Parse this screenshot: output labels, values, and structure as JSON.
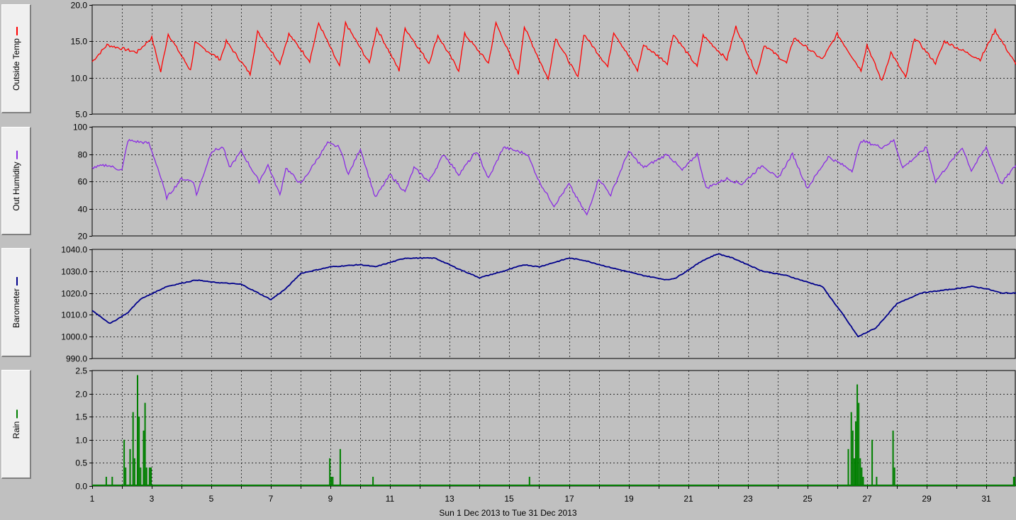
{
  "footer": {
    "date_range": "Sun 1 Dec 2013  to  Tue 31 Dec 2013"
  },
  "x_axis": {
    "ticks": [
      "1",
      "3",
      "5",
      "7",
      "9",
      "11",
      "13",
      "15",
      "17",
      "19",
      "21",
      "23",
      "25",
      "27",
      "29",
      "31"
    ]
  },
  "chart_data": [
    {
      "type": "line",
      "label": "Outside Temp",
      "color": "#ff0000",
      "ylim": [
        5,
        20
      ],
      "yticks": [
        "5.0",
        "10.0",
        "15.0",
        "20.0"
      ],
      "series": [
        {
          "name": "Outside Temp",
          "values": [
            12.2,
            14.5,
            13.5,
            15.5,
            10.8,
            16.0,
            11.0,
            14.8,
            12.5,
            15.0,
            10.5,
            16.3,
            12.0,
            16.0,
            12.3,
            17.5,
            11.5,
            17.5,
            12.0,
            16.8,
            11.0,
            16.8,
            12.0,
            15.8,
            11.0,
            16.0,
            12.0,
            17.5,
            10.5,
            17.0,
            9.8,
            15.5,
            10.0,
            16.0,
            11.5,
            16.3,
            11.0,
            14.5,
            12.0,
            16.0,
            11.5,
            15.8,
            12.5,
            17.0,
            10.5,
            14.5,
            12.0,
            15.5,
            12.5,
            16.0,
            11.0,
            14.5,
            9.5,
            13.5,
            10.0,
            15.5,
            12.0,
            15.0,
            12.5,
            16.5,
            11.8
          ]
        }
      ],
      "x": [
        1.0,
        1.5,
        2.5,
        3.0,
        3.3,
        3.55,
        4.3,
        4.45,
        5.3,
        5.5,
        6.3,
        6.55,
        7.3,
        7.6,
        8.3,
        8.6,
        9.3,
        9.5,
        10.3,
        10.55,
        11.3,
        11.5,
        12.3,
        12.6,
        13.3,
        13.5,
        14.3,
        14.55,
        15.3,
        15.5,
        16.3,
        16.55,
        17.3,
        17.5,
        18.3,
        18.5,
        19.3,
        19.5,
        20.3,
        20.5,
        21.3,
        21.5,
        22.3,
        22.6,
        23.3,
        23.55,
        24.3,
        24.55,
        25.5,
        26.0,
        26.8,
        27.0,
        27.5,
        27.8,
        28.3,
        28.6,
        29.3,
        29.6,
        30.8,
        31.3,
        32.0
      ]
    },
    {
      "type": "line",
      "label": "Out Humidity",
      "color": "#8a2be2",
      "ylim": [
        20,
        100
      ],
      "yticks": [
        "20",
        "40",
        "60",
        "80",
        "100"
      ],
      "series": [
        {
          "name": "Out Humidity",
          "values": [
            70,
            72,
            68,
            90,
            88,
            70,
            48,
            62,
            60,
            50,
            82,
            85,
            70,
            82,
            60,
            72,
            50,
            70,
            58,
            88,
            85,
            65,
            84,
            48,
            65,
            52,
            70,
            60,
            80,
            65,
            82,
            62,
            85,
            80,
            60,
            42,
            58,
            35,
            62,
            50,
            82,
            70,
            80,
            68,
            80,
            55,
            62,
            58,
            72,
            62,
            80,
            55,
            78,
            68,
            90,
            85,
            90,
            70,
            85,
            60,
            85,
            68,
            85,
            58,
            72
          ]
        }
      ],
      "x": [
        1.0,
        1.5,
        2.0,
        2.2,
        2.9,
        3.2,
        3.5,
        4.0,
        4.4,
        4.5,
        5.0,
        5.4,
        5.6,
        6.0,
        6.6,
        6.9,
        7.3,
        7.5,
        8.0,
        8.9,
        9.3,
        9.6,
        10.0,
        10.5,
        11.0,
        11.5,
        11.8,
        12.3,
        12.8,
        13.3,
        13.9,
        14.3,
        14.8,
        15.6,
        16.0,
        16.5,
        17.0,
        17.6,
        18.0,
        18.4,
        19.0,
        19.5,
        20.3,
        20.8,
        21.3,
        21.6,
        22.3,
        22.8,
        23.5,
        24.0,
        24.5,
        25.0,
        25.7,
        26.5,
        26.8,
        27.5,
        27.9,
        28.2,
        29.0,
        29.3,
        30.2,
        30.5,
        31.0,
        31.5,
        32.0
      ]
    },
    {
      "type": "line",
      "label": "Barometer",
      "color": "#00008b",
      "ylim": [
        990,
        1040
      ],
      "yticks": [
        "990.0",
        "1000.0",
        "1010.0",
        "1020.0",
        "1030.0",
        "1040.0"
      ],
      "series": [
        {
          "name": "Barometer",
          "values": [
            1012,
            1006,
            1011,
            1017,
            1023,
            1026,
            1025,
            1024,
            1017,
            1022,
            1029,
            1032,
            1033,
            1032,
            1036,
            1036,
            1031,
            1027,
            1030,
            1033,
            1032,
            1036,
            1035,
            1032,
            1028,
            1026,
            1027,
            1035,
            1038,
            1036,
            1030,
            1028,
            1025,
            1023,
            1010,
            1000,
            1004,
            1015,
            1020,
            1022,
            1023,
            1022,
            1020,
            1020
          ]
        }
      ],
      "x": [
        1.0,
        1.6,
        2.2,
        2.6,
        3.5,
        4.5,
        5.0,
        6.0,
        7.0,
        7.5,
        8.0,
        9.0,
        10.0,
        10.5,
        11.5,
        12.5,
        13.3,
        14.0,
        14.8,
        15.5,
        16.0,
        17.0,
        17.5,
        18.3,
        19.5,
        20.3,
        20.6,
        21.5,
        22.0,
        22.5,
        23.5,
        24.3,
        25.0,
        25.5,
        26.2,
        26.7,
        27.3,
        28.0,
        28.8,
        30.0,
        30.5,
        31.0,
        31.5,
        32.0
      ]
    },
    {
      "type": "bar",
      "label": "Rain",
      "color": "#007f00",
      "ylim": [
        0,
        2.5
      ],
      "yticks": [
        "0.0",
        "0.5",
        "1.0",
        "1.5",
        "2.0",
        "2.5"
      ],
      "x": [
        1.45,
        1.65,
        2.05,
        2.1,
        2.25,
        2.35,
        2.4,
        2.5,
        2.55,
        2.6,
        2.7,
        2.75,
        2.8,
        2.9,
        2.95,
        8.95,
        9.0,
        9.05,
        9.3,
        10.4,
        15.65,
        26.35,
        26.45,
        26.5,
        26.55,
        26.6,
        26.65,
        26.7,
        26.75,
        26.8,
        26.85,
        27.15,
        27.3,
        27.85,
        27.9,
        31.9,
        32.2
      ],
      "values": [
        0.2,
        0.2,
        1.0,
        0.4,
        0.8,
        1.6,
        0.6,
        2.4,
        1.5,
        0.4,
        1.2,
        1.8,
        0.4,
        0.4,
        0.4,
        0.6,
        0.2,
        0.2,
        0.8,
        0.2,
        0.2,
        0.8,
        1.6,
        1.2,
        0.6,
        1.4,
        2.2,
        1.8,
        0.6,
        0.4,
        0.2,
        1.0,
        0.2,
        1.2,
        0.4,
        0.2,
        0.2
      ]
    }
  ]
}
